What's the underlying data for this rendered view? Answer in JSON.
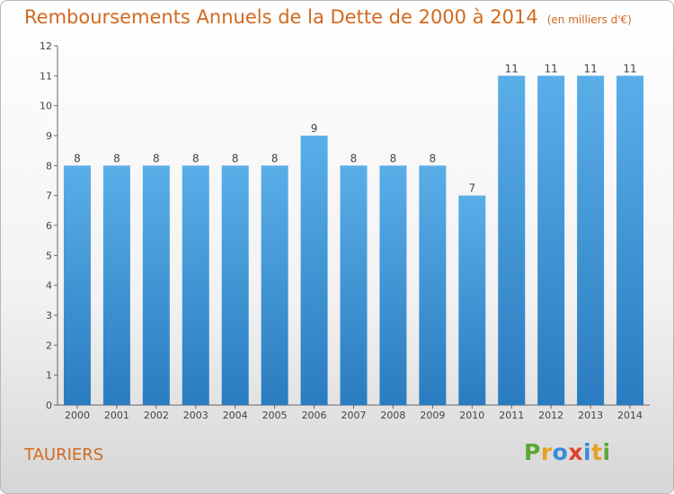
{
  "chart_data": {
    "type": "bar",
    "title": "Remboursements Annuels de la Dette de 2000 à 2014",
    "subtitle": "(en milliers d'€)",
    "categories": [
      "2000",
      "2001",
      "2002",
      "2003",
      "2004",
      "2005",
      "2006",
      "2007",
      "2008",
      "2009",
      "2010",
      "2011",
      "2012",
      "2013",
      "2014"
    ],
    "values": [
      8,
      8,
      8,
      8,
      8,
      8,
      9,
      8,
      8,
      8,
      7,
      11,
      11,
      11,
      11
    ],
    "xlabel": "",
    "ylabel": "",
    "ylim": [
      0,
      12
    ],
    "yticks": [
      0,
      1,
      2,
      3,
      4,
      5,
      6,
      7,
      8,
      9,
      10,
      11,
      12
    ],
    "grid": false,
    "colors": {
      "bar_top": "#5aaee8",
      "bar_bottom": "#2a7cc0",
      "title": "#d2691e",
      "axis": "#666666"
    }
  },
  "footer": {
    "city": "TAURIERS",
    "logo_text": "Proxiti",
    "logo_colors": [
      "#5aa832",
      "#e8a020",
      "#3a8ad8",
      "#e0402a",
      "#3a8ad8",
      "#e8a020",
      "#5aa832"
    ]
  }
}
